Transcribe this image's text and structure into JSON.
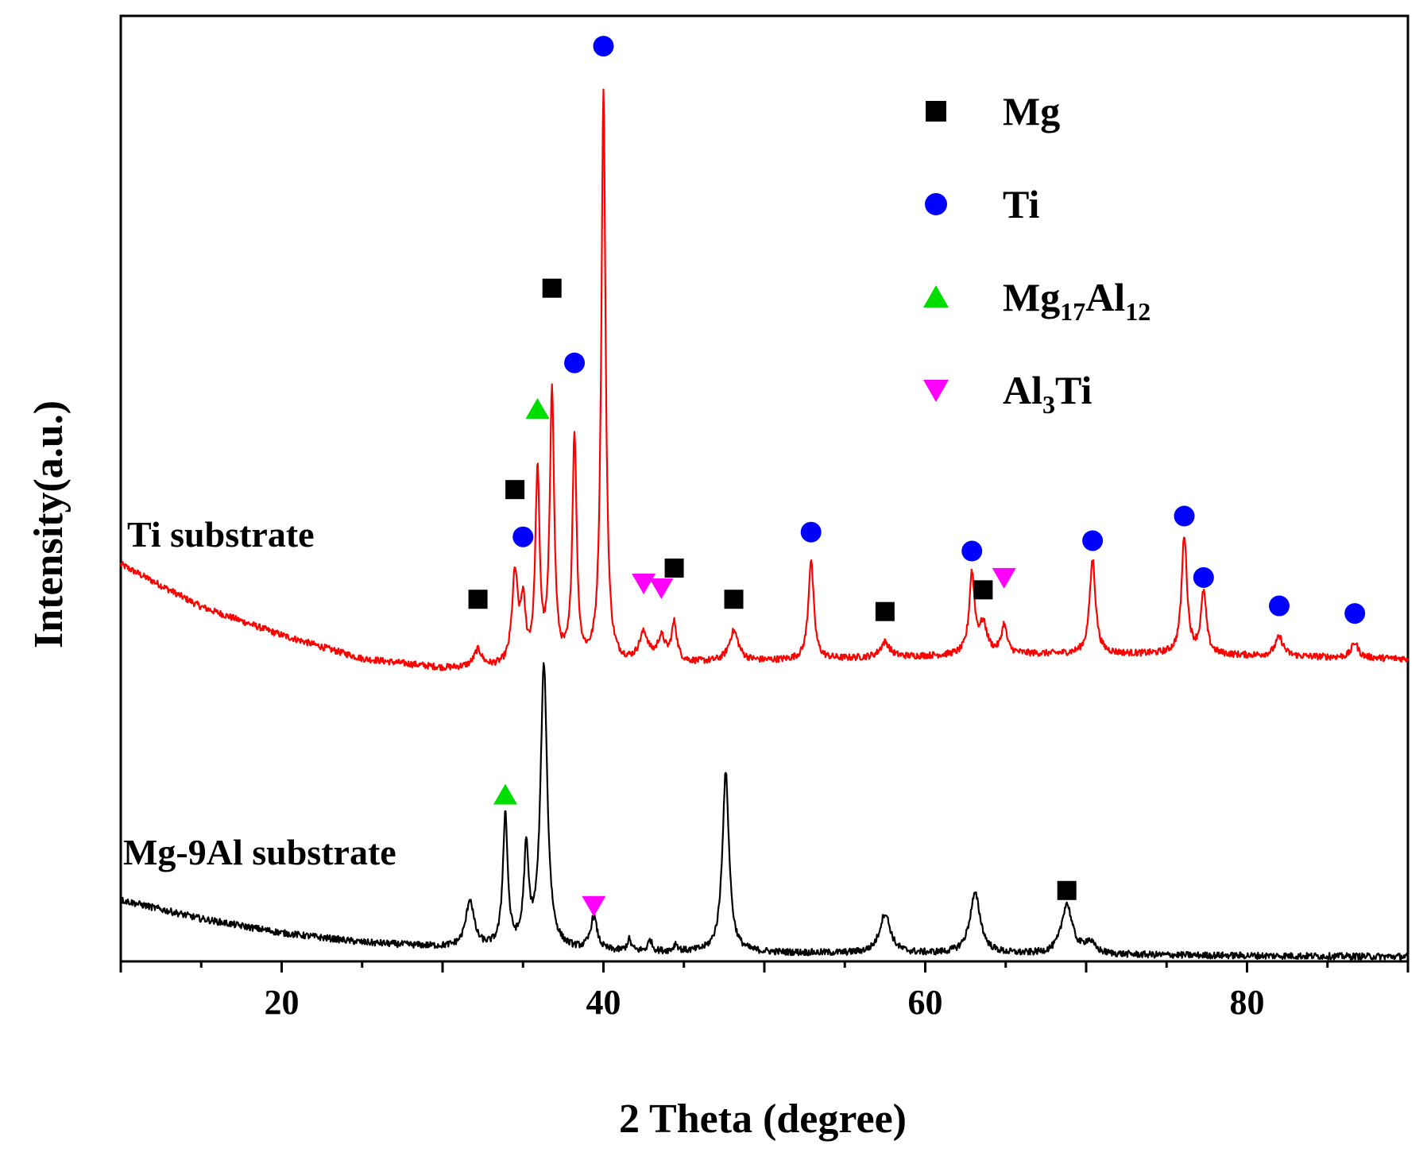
{
  "chart_data": {
    "type": "line",
    "title": "",
    "xlabel": "2 Theta (degree)",
    "ylabel": "Intensity(a.u.)",
    "xlim": [
      10,
      90
    ],
    "x_ticks": [
      20,
      40,
      60,
      80
    ],
    "x_tick_labels": [
      "20",
      "40",
      "60",
      "80"
    ],
    "y_ticks_shown": false,
    "intensity_scale": "arbitrary units, 0 = bottom axis, 100 = top of frame",
    "series": [
      {
        "name": "Ti substrate",
        "color": "#ff0000",
        "baseline": [
          [
            10,
            42.0
          ],
          [
            15,
            37.5
          ],
          [
            20,
            34.5
          ],
          [
            25,
            32.0
          ],
          [
            30,
            31.0
          ],
          [
            35,
            31.0
          ],
          [
            45,
            31.5
          ],
          [
            55,
            32.0
          ],
          [
            65,
            32.5
          ],
          [
            75,
            32.5
          ],
          [
            90,
            32.0
          ]
        ],
        "peaks": [
          {
            "x": 32.2,
            "height": 1.8,
            "width": 0.3
          },
          {
            "x": 34.5,
            "height": 9.5,
            "width": 0.22
          },
          {
            "x": 35.0,
            "height": 6.0,
            "width": 0.18
          },
          {
            "x": 35.9,
            "height": 20.0,
            "width": 0.16
          },
          {
            "x": 36.8,
            "height": 29.0,
            "width": 0.16
          },
          {
            "x": 38.2,
            "height": 24.0,
            "width": 0.16
          },
          {
            "x": 40.0,
            "height": 60.5,
            "width": 0.16
          },
          {
            "x": 42.5,
            "height": 3.0,
            "width": 0.35
          },
          {
            "x": 43.6,
            "height": 2.5,
            "width": 0.3
          },
          {
            "x": 44.4,
            "height": 4.0,
            "width": 0.2
          },
          {
            "x": 48.1,
            "height": 3.2,
            "width": 0.35
          },
          {
            "x": 52.9,
            "height": 10.5,
            "width": 0.2
          },
          {
            "x": 57.5,
            "height": 1.6,
            "width": 0.35
          },
          {
            "x": 62.9,
            "height": 8.5,
            "width": 0.2
          },
          {
            "x": 63.6,
            "height": 3.0,
            "width": 0.3
          },
          {
            "x": 64.9,
            "height": 3.0,
            "width": 0.2
          },
          {
            "x": 70.4,
            "height": 10.0,
            "width": 0.22
          },
          {
            "x": 76.1,
            "height": 12.5,
            "width": 0.2
          },
          {
            "x": 77.3,
            "height": 6.5,
            "width": 0.2
          },
          {
            "x": 82.0,
            "height": 2.0,
            "width": 0.3
          },
          {
            "x": 86.7,
            "height": 1.6,
            "width": 0.25
          }
        ]
      },
      {
        "name": "Mg-9Al substrate",
        "color": "#000000",
        "baseline": [
          [
            10,
            6.5
          ],
          [
            15,
            4.5
          ],
          [
            20,
            3.0
          ],
          [
            25,
            2.0
          ],
          [
            30,
            1.5
          ],
          [
            40,
            1.0
          ],
          [
            60,
            0.8
          ],
          [
            90,
            0.5
          ]
        ],
        "peaks": [
          {
            "x": 31.7,
            "height": 5.0,
            "width": 0.3
          },
          {
            "x": 33.9,
            "height": 14.0,
            "width": 0.18
          },
          {
            "x": 35.2,
            "height": 10.0,
            "width": 0.18
          },
          {
            "x": 36.3,
            "height": 30.0,
            "width": 0.25
          },
          {
            "x": 39.4,
            "height": 3.5,
            "width": 0.25
          },
          {
            "x": 41.6,
            "height": 1.2,
            "width": 0.15
          },
          {
            "x": 42.9,
            "height": 1.2,
            "width": 0.15
          },
          {
            "x": 44.5,
            "height": 0.8,
            "width": 0.15
          },
          {
            "x": 47.6,
            "height": 19.0,
            "width": 0.25
          },
          {
            "x": 57.5,
            "height": 4.2,
            "width": 0.4
          },
          {
            "x": 63.1,
            "height": 6.3,
            "width": 0.4
          },
          {
            "x": 68.8,
            "height": 5.3,
            "width": 0.4
          },
          {
            "x": 70.2,
            "height": 1.2,
            "width": 0.4
          }
        ]
      }
    ],
    "phase_markers": [
      {
        "phase": "Mg",
        "marker": "square",
        "x": 32.2,
        "y": 38.3
      },
      {
        "phase": "Mg",
        "marker": "square",
        "x": 34.5,
        "y": 49.9
      },
      {
        "phase": "Mg",
        "marker": "square",
        "x": 36.8,
        "y": 71.2
      },
      {
        "phase": "Mg",
        "marker": "square",
        "x": 44.4,
        "y": 41.6
      },
      {
        "phase": "Mg",
        "marker": "square",
        "x": 48.1,
        "y": 38.3
      },
      {
        "phase": "Mg",
        "marker": "square",
        "x": 57.5,
        "y": 37.0
      },
      {
        "phase": "Mg",
        "marker": "square",
        "x": 63.6,
        "y": 39.3
      },
      {
        "phase": "Mg",
        "marker": "square",
        "x": 68.8,
        "y": 7.5
      },
      {
        "phase": "Ti",
        "marker": "circle",
        "x": 35.0,
        "y": 44.9
      },
      {
        "phase": "Ti",
        "marker": "circle",
        "x": 38.2,
        "y": 63.3
      },
      {
        "phase": "Ti",
        "marker": "circle",
        "x": 40.0,
        "y": 96.8
      },
      {
        "phase": "Ti",
        "marker": "circle",
        "x": 52.9,
        "y": 45.4
      },
      {
        "phase": "Ti",
        "marker": "circle",
        "x": 62.9,
        "y": 43.4
      },
      {
        "phase": "Ti",
        "marker": "circle",
        "x": 70.4,
        "y": 44.5
      },
      {
        "phase": "Ti",
        "marker": "circle",
        "x": 76.1,
        "y": 47.1
      },
      {
        "phase": "Ti",
        "marker": "circle",
        "x": 77.3,
        "y": 40.6
      },
      {
        "phase": "Ti",
        "marker": "circle",
        "x": 82.0,
        "y": 37.6
      },
      {
        "phase": "Ti",
        "marker": "circle",
        "x": 86.7,
        "y": 36.8
      },
      {
        "phase": "Mg17Al12",
        "marker": "triangle-up",
        "x": 35.9,
        "y": 58.4
      },
      {
        "phase": "Mg17Al12",
        "marker": "triangle-up",
        "x": 33.9,
        "y": 17.6
      },
      {
        "phase": "Al3Ti",
        "marker": "triangle-down",
        "x": 42.5,
        "y": 40.0
      },
      {
        "phase": "Al3Ti",
        "marker": "triangle-down",
        "x": 43.6,
        "y": 39.5
      },
      {
        "phase": "Al3Ti",
        "marker": "triangle-down",
        "x": 64.9,
        "y": 40.6
      },
      {
        "phase": "Al3Ti",
        "marker": "triangle-down",
        "x": 39.4,
        "y": 5.9
      }
    ],
    "legend": {
      "placement": "top-right",
      "entries": [
        {
          "marker": "square",
          "color": "#000000",
          "label": "Mg",
          "sub": []
        },
        {
          "marker": "circle",
          "color": "#0000ff",
          "label": "Ti",
          "sub": []
        },
        {
          "marker": "triangle-up",
          "color": "#00dd00",
          "label": "Mg17Al12",
          "sub": [
            [
              "Mg",
              ""
            ],
            [
              "17",
              "sub"
            ],
            [
              "Al",
              ""
            ],
            [
              "12",
              "sub"
            ]
          ]
        },
        {
          "marker": "triangle-down",
          "color": "#ff00ff",
          "label": "Al3Ti",
          "sub": [
            [
              "Al",
              ""
            ],
            [
              "3",
              "sub"
            ],
            [
              "Ti",
              ""
            ]
          ]
        }
      ]
    },
    "marker_colors": {
      "Mg": "#000000",
      "Ti": "#0000ff",
      "Mg17Al12": "#00dd00",
      "Al3Ti": "#ff00ff"
    }
  }
}
